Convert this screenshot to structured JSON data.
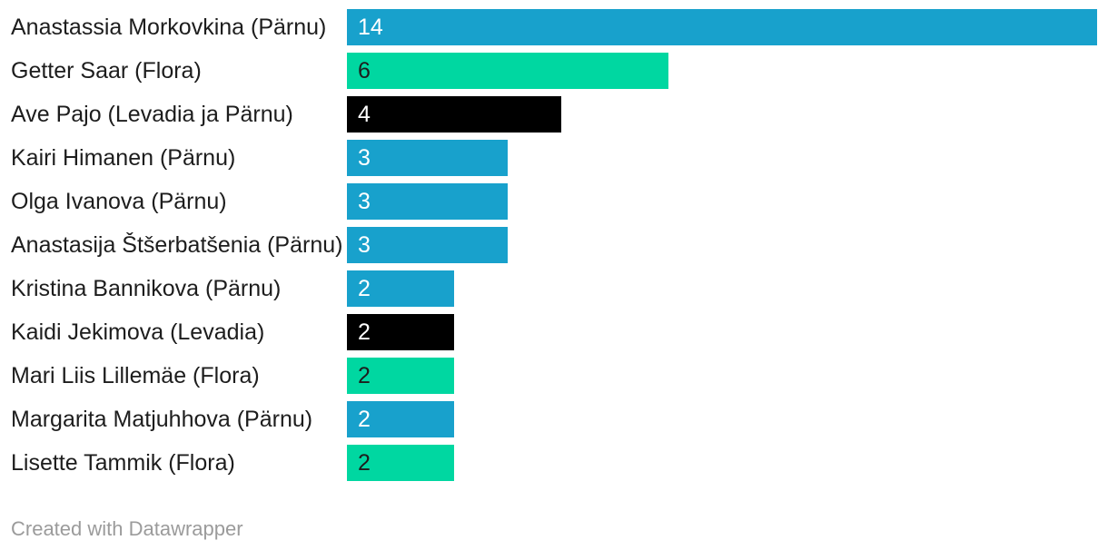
{
  "chart_data": {
    "type": "bar",
    "orientation": "horizontal",
    "title": "",
    "xlabel": "",
    "ylabel": "",
    "xlim": [
      0,
      14
    ],
    "grid": false,
    "legend": false,
    "value_label_position": "inside-start",
    "categories": [
      "Anastassia Morkovkina (Pärnu)",
      "Getter Saar (Flora)",
      "Ave Pajo (Levadia ja Pärnu)",
      "Kairi Himanen (Pärnu)",
      "Olga Ivanova (Pärnu)",
      "Anastasija Štšerbatšenia (Pärnu)",
      "Kristina Bannikova (Pärnu)",
      "Kaidi Jekimova (Levadia)",
      "Mari Liis Lillemäe (Flora)",
      "Margarita Matjuhhova (Pärnu)",
      "Lisette Tammik (Flora)"
    ],
    "values": [
      14,
      6,
      4,
      3,
      3,
      3,
      2,
      2,
      2,
      2,
      2
    ],
    "bar_colors": [
      "#18a1cc",
      "#00d7a1",
      "#000000",
      "#18a1cc",
      "#18a1cc",
      "#18a1cc",
      "#18a1cc",
      "#000000",
      "#00d7a1",
      "#18a1cc",
      "#00d7a1"
    ],
    "value_label_colors": [
      "#ffffff",
      "#1d1d1d",
      "#ffffff",
      "#ffffff",
      "#ffffff",
      "#ffffff",
      "#ffffff",
      "#ffffff",
      "#1d1d1d",
      "#ffffff",
      "#1d1d1d"
    ]
  },
  "palette": {
    "parnu_blue": "#18a1cc",
    "flora_green": "#00d7a1",
    "levadia_black": "#000000",
    "label_text": "#1d1d1d",
    "footer_text": "#9b9b9b"
  },
  "footer": {
    "credit": "Created with Datawrapper"
  }
}
